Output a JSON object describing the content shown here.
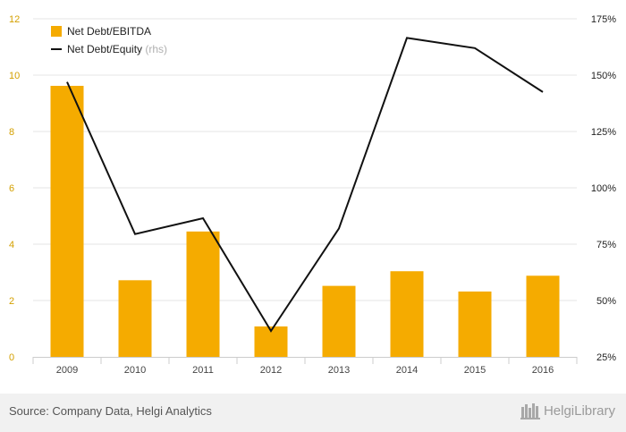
{
  "colors": {
    "bar": "#f5ab00",
    "line": "#111111",
    "grid": "#e6e6e6",
    "left_tick": "#d4a000",
    "right_tick": "#222222",
    "x_tick": "#444444",
    "rhs_note": "#b0b0b0"
  },
  "chart_data": {
    "type": "bar",
    "categories": [
      "2009",
      "2010",
      "2011",
      "2012",
      "2013",
      "2014",
      "2015",
      "2016"
    ],
    "series": [
      {
        "name": "Net Debt/EBITDA",
        "type": "bar",
        "axis": "left",
        "values": [
          9.62,
          2.72,
          4.45,
          1.08,
          2.52,
          3.04,
          2.32,
          2.88
        ]
      },
      {
        "name": "Net Debt/Equity",
        "type": "line",
        "axis": "right",
        "values": [
          147.0,
          79.5,
          86.5,
          36.5,
          82.0,
          166.5,
          162.0,
          142.5
        ]
      }
    ],
    "legend": {
      "items": [
        "Net Debt/EBITDA",
        "Net Debt/Equity"
      ],
      "rhs_note": "(rhs)",
      "placement": "top-left"
    },
    "y_left": {
      "min": 0,
      "max": 12,
      "ticks": [
        "0",
        "2",
        "4",
        "6",
        "8",
        "10",
        "12"
      ]
    },
    "y_right": {
      "min": 25,
      "max": 175,
      "ticks": [
        "25%",
        "50%",
        "75%",
        "100%",
        "125%",
        "150%",
        "175%"
      ]
    },
    "grid": true
  },
  "footer": {
    "source": "Source: Company Data, Helgi Analytics",
    "brand": "HelgiLibrary"
  }
}
